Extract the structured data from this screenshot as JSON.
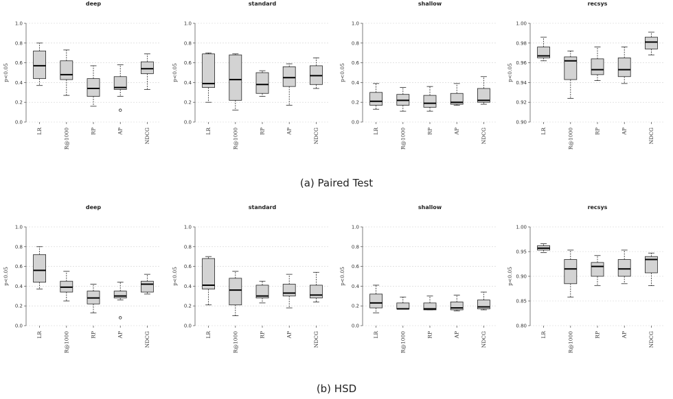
{
  "captions": [
    "(a) Paired Test",
    "(b) HSD"
  ],
  "chart_data": [
    {
      "type": "box",
      "title": "deep",
      "ylabel": "p<0.05",
      "categories": [
        "LR",
        "R@1000",
        "RP",
        "AP",
        "NDCG"
      ],
      "ylim": [
        0,
        1
      ],
      "yticks": [
        "0.0",
        "0.2",
        "0.4",
        "0.6",
        "0.8",
        "1.0"
      ],
      "grid": true,
      "boxes": [
        {
          "whislo": 0.37,
          "q1": 0.44,
          "med": 0.57,
          "q3": 0.72,
          "whishi": 0.8,
          "fliers": []
        },
        {
          "whislo": 0.27,
          "q1": 0.43,
          "med": 0.48,
          "q3": 0.62,
          "whishi": 0.73,
          "fliers": []
        },
        {
          "whislo": 0.16,
          "q1": 0.26,
          "med": 0.34,
          "q3": 0.44,
          "whishi": 0.57,
          "fliers": []
        },
        {
          "whislo": 0.26,
          "q1": 0.33,
          "med": 0.35,
          "q3": 0.46,
          "whishi": 0.58,
          "fliers": [
            0.12
          ]
        },
        {
          "whislo": 0.33,
          "q1": 0.49,
          "med": 0.54,
          "q3": 0.61,
          "whishi": 0.69,
          "fliers": []
        }
      ]
    },
    {
      "type": "box",
      "title": "standard",
      "ylabel": "p<0.05",
      "categories": [
        "LR",
        "R@1000",
        "RP",
        "AP",
        "NDCG"
      ],
      "ylim": [
        0,
        1
      ],
      "yticks": [
        "0.0",
        "0.2",
        "0.4",
        "0.6",
        "0.8",
        "1.0"
      ],
      "grid": true,
      "boxes": [
        {
          "whislo": 0.2,
          "q1": 0.35,
          "med": 0.39,
          "q3": 0.69,
          "whishi": 0.7,
          "fliers": []
        },
        {
          "whislo": 0.12,
          "q1": 0.22,
          "med": 0.43,
          "q3": 0.68,
          "whishi": 0.69,
          "fliers": []
        },
        {
          "whislo": 0.26,
          "q1": 0.29,
          "med": 0.38,
          "q3": 0.5,
          "whishi": 0.52,
          "fliers": []
        },
        {
          "whislo": 0.17,
          "q1": 0.36,
          "med": 0.45,
          "q3": 0.56,
          "whishi": 0.59,
          "fliers": []
        },
        {
          "whislo": 0.34,
          "q1": 0.38,
          "med": 0.47,
          "q3": 0.57,
          "whishi": 0.65,
          "fliers": []
        }
      ]
    },
    {
      "type": "box",
      "title": "shallow",
      "ylabel": "p<0.05",
      "categories": [
        "LR",
        "R@1000",
        "RP",
        "AP",
        "NDCG"
      ],
      "ylim": [
        0,
        1
      ],
      "yticks": [
        "0.0",
        "0.2",
        "0.4",
        "0.6",
        "0.8",
        "1.0"
      ],
      "grid": true,
      "boxes": [
        {
          "whislo": 0.13,
          "q1": 0.17,
          "med": 0.21,
          "q3": 0.3,
          "whishi": 0.39,
          "fliers": []
        },
        {
          "whislo": 0.11,
          "q1": 0.17,
          "med": 0.22,
          "q3": 0.28,
          "whishi": 0.35,
          "fliers": []
        },
        {
          "whislo": 0.11,
          "q1": 0.15,
          "med": 0.19,
          "q3": 0.27,
          "whishi": 0.36,
          "fliers": []
        },
        {
          "whislo": 0.17,
          "q1": 0.18,
          "med": 0.2,
          "q3": 0.29,
          "whishi": 0.39,
          "fliers": []
        },
        {
          "whislo": 0.18,
          "q1": 0.2,
          "med": 0.22,
          "q3": 0.34,
          "whishi": 0.46,
          "fliers": []
        }
      ]
    },
    {
      "type": "box",
      "title": "recsys",
      "ylabel": "p<0.05",
      "categories": [
        "LR",
        "R@1000",
        "RP",
        "AP",
        "NDCG"
      ],
      "ylim": [
        0.9,
        1.0
      ],
      "yticks": [
        "0.90",
        "0.92",
        "0.94",
        "0.96",
        "0.98",
        "1.00"
      ],
      "grid": true,
      "boxes": [
        {
          "whislo": 0.962,
          "q1": 0.965,
          "med": 0.967,
          "q3": 0.976,
          "whishi": 0.986,
          "fliers": []
        },
        {
          "whislo": 0.924,
          "q1": 0.943,
          "med": 0.962,
          "q3": 0.966,
          "whishi": 0.972,
          "fliers": []
        },
        {
          "whislo": 0.942,
          "q1": 0.948,
          "med": 0.953,
          "q3": 0.964,
          "whishi": 0.976,
          "fliers": []
        },
        {
          "whislo": 0.939,
          "q1": 0.946,
          "med": 0.953,
          "q3": 0.965,
          "whishi": 0.976,
          "fliers": []
        },
        {
          "whislo": 0.968,
          "q1": 0.974,
          "med": 0.981,
          "q3": 0.986,
          "whishi": 0.991,
          "fliers": []
        }
      ]
    },
    {
      "type": "box",
      "title": "deep",
      "ylabel": "p<0.05",
      "categories": [
        "LR",
        "R@1000",
        "RP",
        "AP",
        "NDCG"
      ],
      "ylim": [
        0,
        1
      ],
      "yticks": [
        "0.0",
        "0.2",
        "0.4",
        "0.6",
        "0.8",
        "1.0"
      ],
      "grid": true,
      "boxes": [
        {
          "whislo": 0.37,
          "q1": 0.44,
          "med": 0.56,
          "q3": 0.72,
          "whishi": 0.8,
          "fliers": []
        },
        {
          "whislo": 0.25,
          "q1": 0.34,
          "med": 0.39,
          "q3": 0.45,
          "whishi": 0.55,
          "fliers": []
        },
        {
          "whislo": 0.13,
          "q1": 0.22,
          "med": 0.28,
          "q3": 0.35,
          "whishi": 0.42,
          "fliers": []
        },
        {
          "whislo": 0.26,
          "q1": 0.28,
          "med": 0.3,
          "q3": 0.35,
          "whishi": 0.44,
          "fliers": [
            0.08
          ]
        },
        {
          "whislo": 0.32,
          "q1": 0.34,
          "med": 0.42,
          "q3": 0.45,
          "whishi": 0.52,
          "fliers": []
        }
      ]
    },
    {
      "type": "box",
      "title": "standard",
      "ylabel": "p<0.05",
      "categories": [
        "LR",
        "R@1000",
        "RP",
        "AP",
        "NDCG"
      ],
      "ylim": [
        0,
        1
      ],
      "yticks": [
        "0.0",
        "0.2",
        "0.4",
        "0.6",
        "0.8",
        "1.0"
      ],
      "grid": true,
      "boxes": [
        {
          "whislo": 0.21,
          "q1": 0.37,
          "med": 0.41,
          "q3": 0.68,
          "whishi": 0.7,
          "fliers": []
        },
        {
          "whislo": 0.1,
          "q1": 0.21,
          "med": 0.36,
          "q3": 0.48,
          "whishi": 0.55,
          "fliers": []
        },
        {
          "whislo": 0.23,
          "q1": 0.28,
          "med": 0.3,
          "q3": 0.41,
          "whishi": 0.45,
          "fliers": []
        },
        {
          "whislo": 0.18,
          "q1": 0.3,
          "med": 0.33,
          "q3": 0.42,
          "whishi": 0.52,
          "fliers": []
        },
        {
          "whislo": 0.24,
          "q1": 0.28,
          "med": 0.31,
          "q3": 0.41,
          "whishi": 0.54,
          "fliers": []
        }
      ]
    },
    {
      "type": "box",
      "title": "shallow",
      "ylabel": "p<0.05",
      "categories": [
        "LR",
        "R@1000",
        "RP",
        "AP",
        "NDCG"
      ],
      "ylim": [
        0,
        1
      ],
      "yticks": [
        "0.0",
        "0.2",
        "0.4",
        "0.6",
        "0.8",
        "1.0"
      ],
      "grid": true,
      "boxes": [
        {
          "whislo": 0.13,
          "q1": 0.18,
          "med": 0.23,
          "q3": 0.32,
          "whishi": 0.41,
          "fliers": []
        },
        {
          "whislo": 0.17,
          "q1": 0.17,
          "med": 0.17,
          "q3": 0.23,
          "whishi": 0.29,
          "fliers": []
        },
        {
          "whislo": 0.16,
          "q1": 0.16,
          "med": 0.17,
          "q3": 0.23,
          "whishi": 0.3,
          "fliers": []
        },
        {
          "whislo": 0.15,
          "q1": 0.16,
          "med": 0.18,
          "q3": 0.24,
          "whishi": 0.31,
          "fliers": []
        },
        {
          "whislo": 0.16,
          "q1": 0.17,
          "med": 0.19,
          "q3": 0.26,
          "whishi": 0.34,
          "fliers": []
        }
      ]
    },
    {
      "type": "box",
      "title": "recsys",
      "ylabel": "p<0.05",
      "categories": [
        "LR",
        "R@1000",
        "RP",
        "AP",
        "NDCG"
      ],
      "ylim": [
        0.8,
        1.0
      ],
      "yticks": [
        "0.80",
        "0.85",
        "0.90",
        "0.95",
        "1.00"
      ],
      "grid": true,
      "boxes": [
        {
          "whislo": 0.948,
          "q1": 0.953,
          "med": 0.957,
          "q3": 0.962,
          "whishi": 0.966,
          "fliers": []
        },
        {
          "whislo": 0.858,
          "q1": 0.885,
          "med": 0.915,
          "q3": 0.934,
          "whishi": 0.953,
          "fliers": []
        },
        {
          "whislo": 0.881,
          "q1": 0.9,
          "med": 0.92,
          "q3": 0.928,
          "whishi": 0.942,
          "fliers": []
        },
        {
          "whislo": 0.885,
          "q1": 0.9,
          "med": 0.915,
          "q3": 0.934,
          "whishi": 0.953,
          "fliers": []
        },
        {
          "whislo": 0.881,
          "q1": 0.907,
          "med": 0.934,
          "q3": 0.94,
          "whishi": 0.947,
          "fliers": []
        }
      ]
    }
  ]
}
